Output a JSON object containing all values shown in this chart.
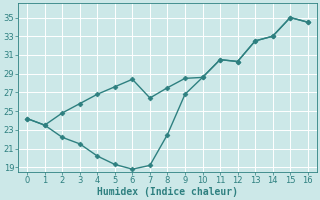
{
  "title": "",
  "xlabel": "Humidex (Indice chaleur)",
  "line1_x": [
    0,
    1,
    2,
    3,
    4,
    5,
    6,
    7,
    8,
    9,
    10,
    11,
    12,
    13,
    14,
    15,
    16
  ],
  "line1_y": [
    24.2,
    23.5,
    24.8,
    25.8,
    26.8,
    27.6,
    28.4,
    26.4,
    27.5,
    28.5,
    28.6,
    30.5,
    30.3,
    32.5,
    33.0,
    35.0,
    34.5
  ],
  "line2_x": [
    0,
    1,
    2,
    3,
    4,
    5,
    6,
    7,
    8,
    9,
    10,
    11,
    12,
    13,
    14,
    15,
    16
  ],
  "line2_y": [
    24.2,
    23.5,
    22.2,
    21.5,
    20.2,
    19.3,
    18.8,
    19.2,
    22.5,
    26.8,
    28.6,
    30.5,
    30.3,
    32.5,
    33.0,
    35.0,
    34.5
  ],
  "line_color": "#2e8080",
  "marker": "D",
  "markersize": 2.5,
  "xlim": [
    -0.5,
    16.5
  ],
  "ylim": [
    18.5,
    36.5
  ],
  "yticks": [
    19,
    21,
    23,
    25,
    27,
    29,
    31,
    33,
    35
  ],
  "xticks": [
    0,
    1,
    2,
    3,
    4,
    5,
    6,
    7,
    8,
    9,
    10,
    11,
    12,
    13,
    14,
    15,
    16
  ],
  "bg_color": "#cce8e8",
  "grid_color": "#b8d8d8",
  "linewidth": 1.0,
  "xlabel_fontsize": 7,
  "tick_fontsize": 6
}
